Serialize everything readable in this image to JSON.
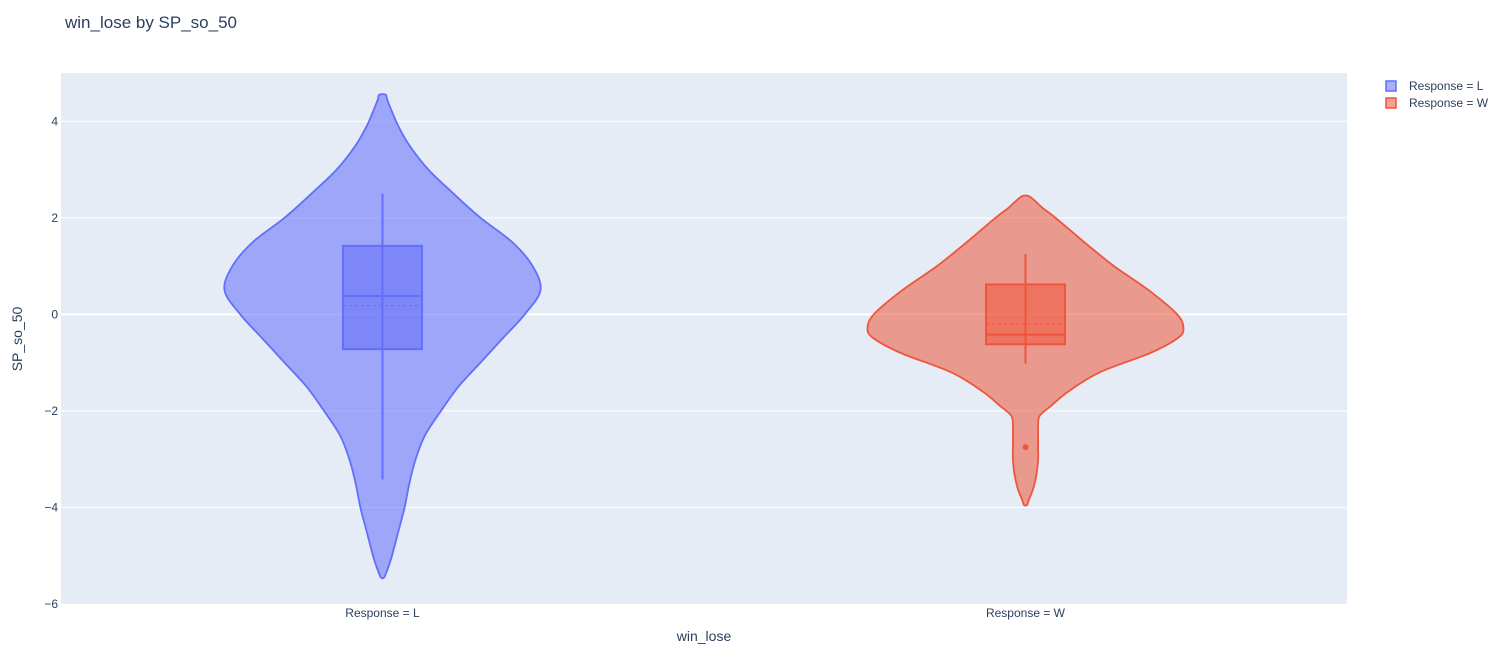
{
  "chart_data": {
    "type": "violin",
    "title": "win_lose by SP_so_50",
    "xlabel": "win_lose",
    "ylabel": "SP_so_50",
    "ylim": [
      -6,
      5
    ],
    "yticks": [
      4,
      2,
      0,
      -2,
      -4,
      -6
    ],
    "ytick_labels": [
      "4",
      "2",
      "0",
      "−2",
      "−4",
      "−6"
    ],
    "categories": [
      "Response = L",
      "Response = W"
    ],
    "legend_position": "top-right",
    "grid": true,
    "plot_background": "#e5ecf6",
    "series": [
      {
        "name": "Response = L",
        "category": "Response = L",
        "color": "#636efa",
        "fill": "rgba(99,110,250,0.55)",
        "box": {
          "min": -3.42,
          "q1": -0.72,
          "median": 0.38,
          "mean": 0.18,
          "q3": 1.42,
          "max": 2.5
        },
        "outliers": [],
        "density": {
          "y": [
            4.55,
            4.45,
            4.2,
            3.9,
            3.5,
            3.0,
            2.5,
            2.0,
            1.5,
            1.0,
            0.5,
            0.0,
            -0.5,
            -1.0,
            -1.5,
            -2.0,
            -2.5,
            -3.0,
            -3.5,
            -4.0,
            -4.5,
            -5.0,
            -5.3,
            -5.45
          ],
          "width": [
            0.02,
            0.03,
            0.06,
            0.1,
            0.17,
            0.29,
            0.45,
            0.62,
            0.82,
            0.95,
            1.0,
            0.9,
            0.76,
            0.62,
            0.48,
            0.37,
            0.27,
            0.21,
            0.17,
            0.14,
            0.1,
            0.06,
            0.03,
            0.01
          ]
        }
      },
      {
        "name": "Response = W",
        "category": "Response = W",
        "color": "#ef553b",
        "fill": "rgba(239,85,59,0.55)",
        "box": {
          "min": -1.02,
          "q1": -0.62,
          "median": -0.42,
          "mean": -0.2,
          "q3": 0.62,
          "max": 1.25
        },
        "outliers": [
          -2.75
        ],
        "density": {
          "y": [
            2.45,
            2.35,
            2.2,
            2.0,
            1.5,
            1.0,
            0.5,
            0.0,
            -0.3,
            -0.5,
            -0.8,
            -1.2,
            -1.6,
            -1.9,
            -2.1,
            -2.3,
            -2.5,
            -2.8,
            -3.0,
            -3.3,
            -3.6,
            -3.85,
            -3.95
          ],
          "width": [
            0.02,
            0.06,
            0.11,
            0.19,
            0.37,
            0.56,
            0.78,
            0.96,
            1.0,
            0.96,
            0.79,
            0.47,
            0.27,
            0.16,
            0.09,
            0.08,
            0.08,
            0.08,
            0.08,
            0.07,
            0.05,
            0.02,
            0.01
          ]
        }
      }
    ]
  }
}
